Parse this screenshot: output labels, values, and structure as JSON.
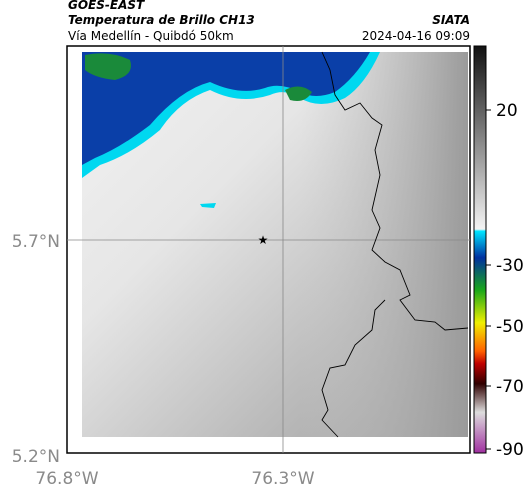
{
  "header": {
    "source": "GOES-EAST",
    "title": "Temperatura de Brillo CH13",
    "subtitle": "Vía Medellín - Quibdó 50km",
    "credit": "SIATA",
    "timestamp": "2024-04-16 09:09"
  },
  "map": {
    "lat_labels": [
      "5.7°N",
      "5.2°N"
    ],
    "lon_labels": [
      "76.8°W",
      "76.3°W"
    ]
  },
  "colorbar": {
    "ticks": [
      "20",
      "-30",
      "-50",
      "-70",
      "-90"
    ]
  }
}
